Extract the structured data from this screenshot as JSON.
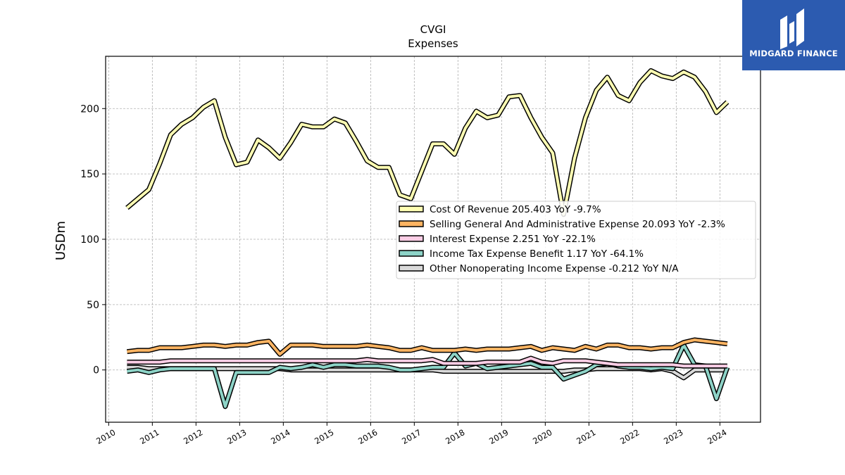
{
  "chart_data": {
    "type": "line",
    "title": "CVGI",
    "subtitle": "Expenses",
    "ylabel": "USDm",
    "xlabel": "",
    "ylim": [
      -40,
      240
    ],
    "xlim": [
      2009.93,
      2024.93
    ],
    "yticks": [
      0,
      50,
      100,
      150,
      200
    ],
    "xticks": [
      2010,
      2011,
      2012,
      2013,
      2014,
      2015,
      2016,
      2017,
      2018,
      2019,
      2020,
      2021,
      2022,
      2023,
      2024
    ],
    "grid": true,
    "legend_position": "center-right",
    "x": [
      2010.42,
      2010.67,
      2010.92,
      2011.17,
      2011.42,
      2011.67,
      2011.92,
      2012.17,
      2012.42,
      2012.67,
      2012.92,
      2013.17,
      2013.42,
      2013.67,
      2013.92,
      2014.17,
      2014.42,
      2014.67,
      2014.92,
      2015.17,
      2015.42,
      2015.67,
      2015.92,
      2016.17,
      2016.42,
      2016.67,
      2016.92,
      2017.17,
      2017.42,
      2017.67,
      2017.92,
      2018.17,
      2018.42,
      2018.67,
      2018.92,
      2019.17,
      2019.42,
      2019.67,
      2019.92,
      2020.17,
      2020.42,
      2020.67,
      2020.92,
      2021.17,
      2021.42,
      2021.67,
      2021.92,
      2022.17,
      2022.42,
      2022.67,
      2022.92,
      2023.17,
      2023.42,
      2023.67,
      2023.92,
      2024.17
    ],
    "series": [
      {
        "name": "Cost Of Revenue",
        "legend": "Cost Of Revenue  205.403 YoY -9.7%",
        "color": "#ffffb3",
        "values": [
          124,
          131,
          138,
          158,
          180,
          188,
          193,
          201,
          206,
          178,
          157,
          159,
          176,
          170,
          162,
          174,
          188,
          186,
          186,
          192,
          189,
          175,
          160,
          155,
          155,
          134,
          131,
          152,
          173,
          173,
          165,
          185,
          198,
          193,
          195,
          209,
          210,
          193,
          178,
          166,
          119,
          162,
          193,
          214,
          224,
          210,
          206,
          220,
          229,
          225,
          223,
          228,
          224,
          213,
          197,
          205
        ]
      },
      {
        "name": "Selling General And Administrative Expense",
        "legend": "Selling General And Administrative Expense  20.093 YoY -2.3%",
        "color": "#fdb462",
        "values": [
          14,
          15,
          15,
          17,
          17,
          17,
          18,
          19,
          19,
          18,
          19,
          19,
          21,
          22,
          12,
          19,
          19,
          19,
          18,
          18,
          18,
          18,
          19,
          18,
          17,
          15,
          15,
          17,
          15,
          15,
          15,
          16,
          15,
          16,
          16,
          16,
          17,
          18,
          15,
          17,
          16,
          15,
          18,
          16,
          19,
          19,
          17,
          17,
          16,
          17,
          17,
          21,
          23,
          22,
          21,
          20
        ]
      },
      {
        "name": "Interest Expense",
        "legend": "Interest Expense  2.251 YoY -22.1%",
        "color": "#fccde5",
        "values": [
          6,
          6,
          6,
          6,
          7,
          7,
          7,
          7,
          7,
          7,
          7,
          7,
          7,
          7,
          7,
          7,
          7,
          7,
          7,
          7,
          7,
          7,
          8,
          7,
          7,
          7,
          7,
          7,
          8,
          5,
          5,
          5,
          5,
          6,
          6,
          6,
          6,
          9,
          6,
          5,
          7,
          7,
          7,
          6,
          5,
          4,
          4,
          4,
          4,
          4,
          4,
          3,
          3,
          3,
          3,
          3
        ]
      },
      {
        "name": "Income Tax Expense Benefit",
        "legend": "Income Tax Expense Benefit  1.17 YoY -64.1%",
        "color": "#8dd3c7",
        "values": [
          -1,
          0,
          -2,
          0,
          1,
          1,
          1,
          1,
          1,
          -28,
          -2,
          -2,
          -2,
          -2,
          2,
          1,
          2,
          4,
          2,
          4,
          4,
          3,
          3,
          3,
          2,
          0,
          0,
          1,
          2,
          2,
          13,
          3,
          5,
          1,
          2,
          3,
          4,
          5,
          2,
          2,
          -7,
          -4,
          -1,
          4,
          5,
          3,
          2,
          2,
          1,
          2,
          1,
          19,
          4,
          3,
          -22,
          2
        ]
      },
      {
        "name": "Other Nonoperating Income Expense",
        "legend": "Other Nonoperating Income Expense  -0.212 YoY N/A",
        "color": "#d9d9d9",
        "values": [
          2,
          2,
          1,
          1,
          1,
          1,
          1,
          1,
          1,
          1,
          1,
          1,
          1,
          1,
          1,
          0,
          0,
          0,
          0,
          0,
          0,
          0,
          0,
          0,
          0,
          0,
          0,
          0,
          0,
          -1,
          -1,
          -1,
          -1,
          -1,
          -1,
          -1,
          -1,
          -1,
          -1,
          -1,
          -1,
          0,
          0,
          1,
          1,
          1,
          1,
          1,
          0,
          1,
          -1,
          -6,
          0,
          0,
          0,
          0
        ]
      }
    ]
  },
  "watermark": {
    "text": "MIDGARD FINANCE",
    "color": "#2c5bb0"
  }
}
